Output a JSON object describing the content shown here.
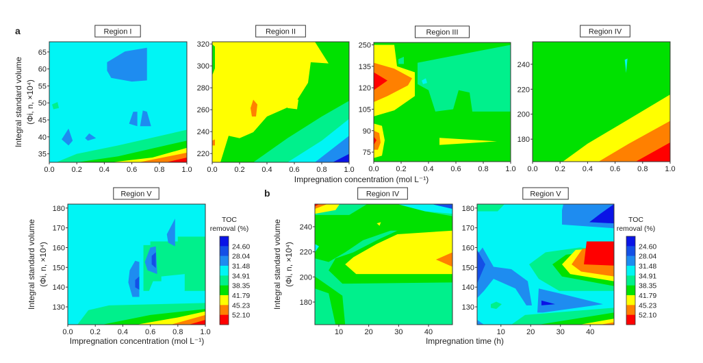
{
  "figure": {
    "panel_a_label": "a",
    "panel_b_label": "b",
    "ylabel_line1": "Integral standard volume",
    "ylabel_line2": "(Φi, n, ×10⁴)",
    "xlabel_concentration": "Impregnation concentration (mol L⁻¹)",
    "xlabel_time": "Impregnation time (h)"
  },
  "colorbar": {
    "title_line1": "TOC",
    "title_line2": "removal (%)",
    "levels": [
      "24.60",
      "28.04",
      "31.48",
      "34.91",
      "38.35",
      "41.79",
      "45.23",
      "52.10"
    ],
    "colors": [
      "#0a14e6",
      "#1450e6",
      "#1e8cf0",
      "#00f5f5",
      "#00f08c",
      "#00e100",
      "#ffff00",
      "#ff8000",
      "#ff0000"
    ]
  },
  "chart_data": [
    {
      "panel": "a",
      "type": "heatmap",
      "style": "filled-contour",
      "title": "Region I",
      "xlim": [
        0,
        1
      ],
      "ylim": [
        32.5,
        68
      ],
      "x_ticks": [
        "0.0",
        "0.2",
        "0.4",
        "0.6",
        "0.8",
        "1.0"
      ],
      "y_ticks": [
        "35",
        "40",
        "45",
        "50",
        "55",
        "60",
        "65"
      ],
      "y_tick_values": [
        35,
        40,
        45,
        50,
        55,
        60,
        65
      ],
      "dominant_level": "31.48–34.91",
      "max_region": "x≈1.0, y≈33 (>52.10)",
      "min_region": "x≈0.4–0.7, y≈57–66 (28.04–31.48)"
    },
    {
      "panel": "a",
      "type": "heatmap",
      "style": "filled-contour",
      "title": "Region II",
      "xlim": [
        0,
        1
      ],
      "ylim": [
        212,
        322
      ],
      "x_ticks": [
        "0.0",
        "0.2",
        "0.4",
        "0.6",
        "0.8",
        "1.0"
      ],
      "y_ticks": [
        "220",
        "240",
        "260",
        "280",
        "300",
        "320"
      ],
      "y_tick_values": [
        220,
        240,
        260,
        280,
        300,
        320
      ],
      "dominant_level": "41.79–45.23",
      "max_region": "x≈0.3, y≈250 (45.23–52.10)",
      "min_region": "x≈1.0, y≈212 (<24.60)"
    },
    {
      "panel": "a",
      "type": "heatmap",
      "style": "filled-contour",
      "title": "Region III",
      "xlim": [
        0,
        1
      ],
      "x_ticks": [
        "0.0",
        "0.2",
        "0.4",
        "0.6",
        "0.8",
        "1.0"
      ],
      "y_ticks": [
        "75",
        "90",
        "105",
        "120",
        "135",
        "250"
      ],
      "dominant_level": "38.35–41.79",
      "max_region": "x≈0.0, y≈120 and y≈82 (>52.10)"
    },
    {
      "panel": "a",
      "type": "heatmap",
      "style": "filled-contour",
      "title": "Region IV",
      "xlim": [
        0,
        1
      ],
      "ylim": [
        162,
        258
      ],
      "x_ticks": [
        "0.0",
        "0.2",
        "0.4",
        "0.6",
        "0.8",
        "1.0"
      ],
      "y_ticks": [
        "180",
        "200",
        "220",
        "240"
      ],
      "y_tick_values": [
        180,
        200,
        220,
        240
      ],
      "dominant_level": "38.35–41.79",
      "max_region": "x≈1.0, y≈162 (>52.10)"
    },
    {
      "panel": "a",
      "type": "heatmap",
      "style": "filled-contour",
      "title": "Region V",
      "xlim": [
        0,
        1
      ],
      "ylim": [
        121,
        182
      ],
      "x_ticks": [
        "0.0",
        "0.2",
        "0.4",
        "0.6",
        "0.8",
        "1.0"
      ],
      "y_ticks": [
        "130",
        "140",
        "150",
        "160",
        "170",
        "180"
      ],
      "y_tick_values": [
        130,
        140,
        150,
        160,
        170,
        180
      ],
      "dominant_level": "31.48–34.91",
      "max_region": "x≈1.0, y≈121 (>52.10)",
      "min_region": "x≈0.5, y≈141 and x≈0.63, y≈152 (24.60–28.04)"
    },
    {
      "panel": "b",
      "type": "heatmap",
      "style": "filled-contour",
      "title": "Region IV",
      "xlim": [
        2,
        48
      ],
      "ylim": [
        162,
        258
      ],
      "x_ticks": [
        "10",
        "20",
        "30",
        "40"
      ],
      "x_tick_values": [
        10,
        20,
        30,
        40
      ],
      "y_ticks": [
        "180",
        "200",
        "220",
        "240"
      ],
      "y_tick_values": [
        180,
        200,
        220,
        240
      ],
      "dominant_level": "34.91–38.35",
      "max_region": "x≈2, y≈258 (>52.10)",
      "min_region": "x≈48, y≈258 (24.60–28.04)"
    },
    {
      "panel": "b",
      "type": "heatmap",
      "style": "filled-contour",
      "title": "Region V",
      "xlim": [
        2,
        48
      ],
      "ylim": [
        121,
        182
      ],
      "x_ticks": [
        "10",
        "20",
        "30",
        "40"
      ],
      "x_tick_values": [
        10,
        20,
        30,
        40
      ],
      "y_ticks": [
        "130",
        "140",
        "150",
        "160",
        "170",
        "180"
      ],
      "y_tick_values": [
        130,
        140,
        150,
        160,
        170,
        180
      ],
      "dominant_level": "31.48–34.91",
      "max_region": "x≈40–48, y≈150–162 (>52.10)",
      "min_region": "x≈42–48, y≈172–182 (<24.60)"
    }
  ]
}
